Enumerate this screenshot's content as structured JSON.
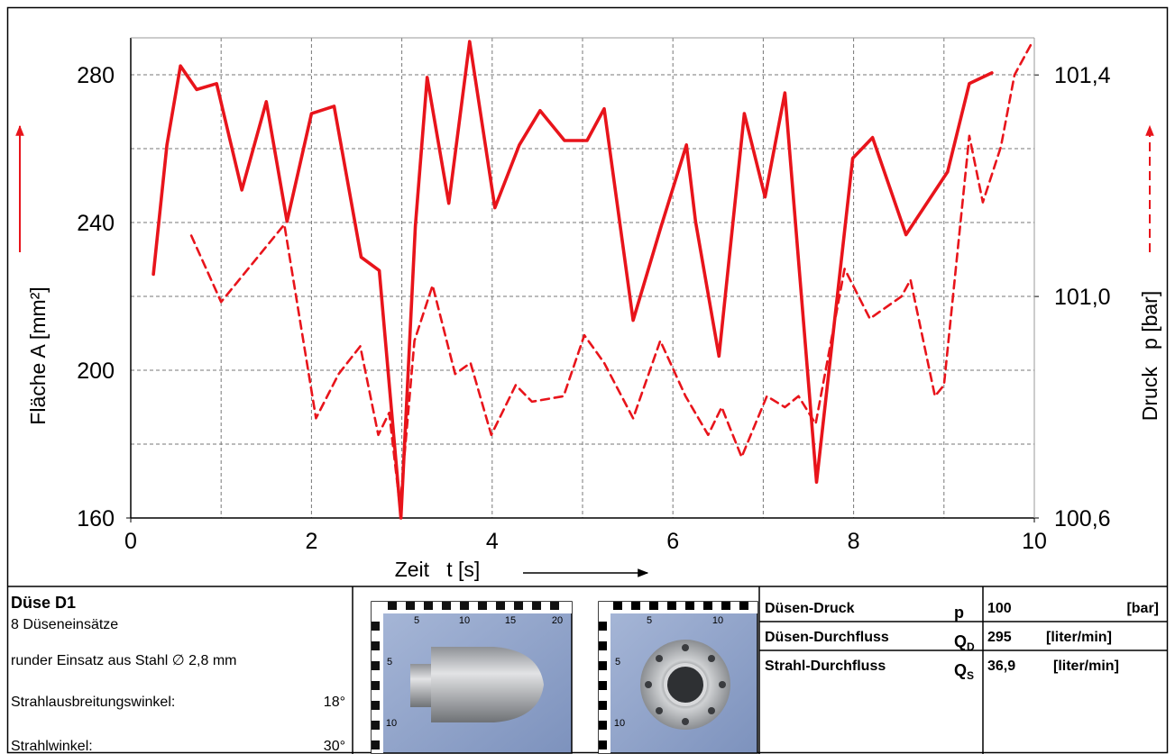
{
  "chart_data": {
    "type": "line",
    "xlabel": "Zeit   t [s]",
    "ylabel": "Fläche A [mm²]",
    "y2label": "Druck   p [bar]",
    "xlim": [
      0,
      10
    ],
    "xticks": [
      0,
      2,
      4,
      6,
      8,
      10
    ],
    "minor_xticks": [
      1,
      3,
      5,
      7,
      9
    ],
    "ylim": [
      160,
      290
    ],
    "yticks": [
      160,
      200,
      240,
      280
    ],
    "minor_yticks": [
      180,
      220,
      260
    ],
    "y2lim": [
      100.6,
      101.467
    ],
    "y2ticks": [
      {
        "value": 100.6,
        "label": "100,6"
      },
      {
        "value": 101.0,
        "label": "101,0"
      },
      {
        "value": 101.4,
        "label": "101,4"
      }
    ],
    "grid": true,
    "series": [
      {
        "color": "#e8141b",
        "style": "solid",
        "x": [
          0.25,
          0.4,
          0.55,
          0.73,
          0.95,
          1.23,
          1.5,
          1.73,
          2.0,
          2.25,
          2.55,
          2.75,
          2.99,
          3.15,
          3.28,
          3.52,
          3.75,
          4.03,
          4.3,
          4.53,
          4.8,
          5.05,
          5.24,
          5.56,
          5.87,
          6.15,
          6.25,
          6.51,
          6.79,
          7.02,
          7.24,
          7.59,
          7.99,
          8.21,
          8.58,
          9.04,
          9.28,
          9.53
        ],
        "values": [
          226,
          261,
          282.4,
          276,
          277.6,
          248.8,
          272.7,
          240.3,
          269.5,
          271.5,
          230.6,
          227,
          160,
          239,
          279.3,
          245.2,
          289,
          244,
          261,
          270.3,
          262.2,
          262.2,
          270.8,
          213.5,
          239,
          261,
          240.3,
          203.8,
          269.5,
          246.9,
          275.1,
          169.7,
          257.4,
          263,
          236.7,
          253.7,
          277.6,
          280.5
        ]
      },
      {
        "color": "#e8141b",
        "style": "dashed",
        "axis": "y2",
        "x": [
          0.67,
          1.0,
          1.7,
          2.05,
          2.3,
          2.54,
          2.74,
          2.86,
          2.98,
          3.14,
          3.34,
          3.59,
          3.76,
          3.99,
          4.26,
          4.44,
          4.79,
          5.02,
          5.24,
          5.56,
          5.86,
          6.14,
          6.39,
          6.54,
          6.76,
          7.04,
          7.24,
          7.39,
          7.58,
          7.9,
          8.18,
          8.53,
          8.63,
          8.9,
          9.0,
          9.28,
          9.43,
          9.63,
          9.78,
          9.98
        ],
        "values": [
          101.11,
          100.99,
          101.13,
          100.78,
          100.86,
          100.91,
          100.75,
          100.79,
          100.62,
          100.92,
          101.02,
          100.86,
          100.88,
          100.75,
          100.84,
          100.81,
          100.82,
          100.93,
          100.88,
          100.78,
          100.92,
          100.82,
          100.75,
          100.8,
          100.71,
          100.82,
          100.8,
          100.82,
          100.77,
          101.05,
          100.96,
          101.0,
          101.03,
          100.82,
          100.84,
          101.29,
          101.17,
          101.27,
          101.4,
          101.46
        ]
      }
    ]
  },
  "info": {
    "nozzle": {
      "title": "Düse D1",
      "lines": [
        "8 Düseneinsätze",
        "runder Einsatz aus Stahl ∅ 2,8 mm"
      ],
      "angles": [
        {
          "label": "Strahlausbreitungswinkel:",
          "value": "18°"
        },
        {
          "label": "Strahlwinkel:",
          "value": "30°"
        }
      ]
    },
    "photos": [
      {
        "scale_top": [
          "5",
          "10",
          "15",
          "20"
        ],
        "scale_left": [
          "5",
          "10"
        ]
      },
      {
        "scale_top": [
          "5",
          "10"
        ],
        "scale_left": [
          "5",
          "10"
        ]
      }
    ],
    "table": [
      {
        "label": "Düsen-Druck",
        "symbol": "p",
        "value": "100",
        "unit": "[bar]"
      },
      {
        "label": "Düsen-Durchfluss",
        "symbol": "Q",
        "subscript": "D",
        "value": "295",
        "unit": "[liter/min]"
      },
      {
        "label": "Strahl-Durchfluss",
        "symbol": "Q",
        "subscript": "S",
        "value": "36,9",
        "unit": "[liter/min]"
      }
    ]
  }
}
